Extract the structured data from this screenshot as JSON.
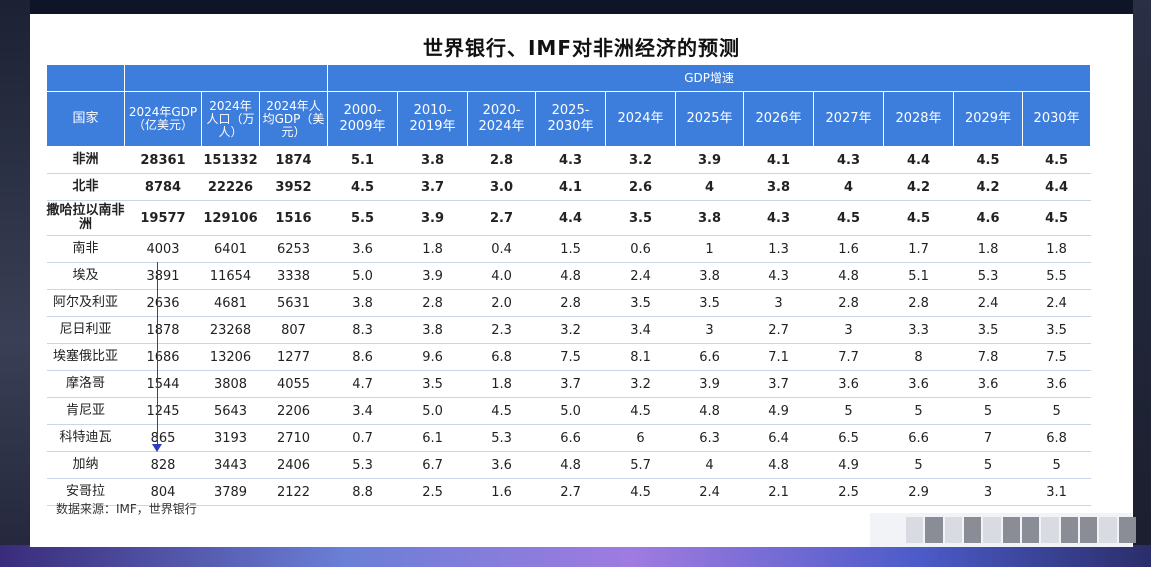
{
  "title": "世界银行、IMF对非洲经济的预测",
  "header": {
    "gdp_growth": "GDP增速",
    "country": "国家",
    "gdp_2024": "2024年GDP（亿美元）",
    "pop_2024": "2024年人口（万人）",
    "gdp_per_capita": "2024年人均GDP（美元）",
    "periods": [
      "2000-2009年",
      "2010-2019年",
      "2020-2024年",
      "2025-2030年",
      "2024年",
      "2025年",
      "2026年",
      "2027年",
      "2028年",
      "2029年",
      "2030年"
    ]
  },
  "rows": [
    {
      "name": "非洲",
      "gdp": "28361",
      "pop": "151332",
      "pc": "1874",
      "g": [
        "5.1",
        "3.8",
        "2.8",
        "4.3",
        "3.2",
        "3.9",
        "4.1",
        "4.3",
        "4.4",
        "4.5",
        "4.5"
      ]
    },
    {
      "name": "北非",
      "gdp": "8784",
      "pop": "22226",
      "pc": "3952",
      "g": [
        "4.5",
        "3.7",
        "3.0",
        "4.1",
        "2.6",
        "4",
        "3.8",
        "4",
        "4.2",
        "4.2",
        "4.4"
      ]
    },
    {
      "name": "撒哈拉以南非洲",
      "gdp": "19577",
      "pop": "129106",
      "pc": "1516",
      "g": [
        "5.5",
        "3.9",
        "2.7",
        "4.4",
        "3.5",
        "3.8",
        "4.3",
        "4.5",
        "4.5",
        "4.6",
        "4.5"
      ]
    },
    {
      "name": "南非",
      "gdp": "4003",
      "pop": "6401",
      "pc": "6253",
      "g": [
        "3.6",
        "1.8",
        "0.4",
        "1.5",
        "0.6",
        "1",
        "1.3",
        "1.6",
        "1.7",
        "1.8",
        "1.8"
      ]
    },
    {
      "name": "埃及",
      "gdp": "3891",
      "pop": "11654",
      "pc": "3338",
      "g": [
        "5.0",
        "3.9",
        "4.0",
        "4.8",
        "2.4",
        "3.8",
        "4.3",
        "4.8",
        "5.1",
        "5.3",
        "5.5"
      ]
    },
    {
      "name": "阿尔及利亚",
      "gdp": "2636",
      "pop": "4681",
      "pc": "5631",
      "g": [
        "3.8",
        "2.8",
        "2.0",
        "2.8",
        "3.5",
        "3.5",
        "3",
        "2.8",
        "2.8",
        "2.4",
        "2.4"
      ]
    },
    {
      "name": "尼日利亚",
      "gdp": "1878",
      "pop": "23268",
      "pc": "807",
      "g": [
        "8.3",
        "3.8",
        "2.3",
        "3.2",
        "3.4",
        "3",
        "2.7",
        "3",
        "3.3",
        "3.5",
        "3.5"
      ]
    },
    {
      "name": "埃塞俄比亚",
      "gdp": "1686",
      "pop": "13206",
      "pc": "1277",
      "g": [
        "8.6",
        "9.6",
        "6.8",
        "7.5",
        "8.1",
        "6.6",
        "7.1",
        "7.7",
        "8",
        "7.8",
        "7.5"
      ]
    },
    {
      "name": "摩洛哥",
      "gdp": "1544",
      "pop": "3808",
      "pc": "4055",
      "g": [
        "4.7",
        "3.5",
        "1.8",
        "3.7",
        "3.2",
        "3.9",
        "3.7",
        "3.6",
        "3.6",
        "3.6",
        "3.6"
      ]
    },
    {
      "name": "肯尼亚",
      "gdp": "1245",
      "pop": "5643",
      "pc": "2206",
      "g": [
        "3.4",
        "5.0",
        "4.5",
        "5.0",
        "4.5",
        "4.8",
        "4.9",
        "5",
        "5",
        "5",
        "5"
      ]
    },
    {
      "name": "科特迪瓦",
      "gdp": "865",
      "pop": "3193",
      "pc": "2710",
      "g": [
        "0.7",
        "6.1",
        "5.3",
        "6.6",
        "6",
        "6.3",
        "6.4",
        "6.5",
        "6.6",
        "7",
        "6.8"
      ]
    },
    {
      "name": "加纳",
      "gdp": "828",
      "pop": "3443",
      "pc": "2406",
      "g": [
        "5.3",
        "6.7",
        "3.6",
        "4.8",
        "5.7",
        "4",
        "4.8",
        "4.9",
        "5",
        "5",
        "5"
      ]
    },
    {
      "name": "安哥拉",
      "gdp": "804",
      "pop": "3789",
      "pc": "2122",
      "g": [
        "8.8",
        "2.5",
        "1.6",
        "2.7",
        "4.5",
        "2.4",
        "2.1",
        "2.5",
        "2.9",
        "3",
        "3.1"
      ]
    }
  ],
  "source": "数据来源：IMF，世界银行",
  "colors": {
    "header_bg": "#3d7ddb",
    "arrow": "#2b3ec0"
  }
}
